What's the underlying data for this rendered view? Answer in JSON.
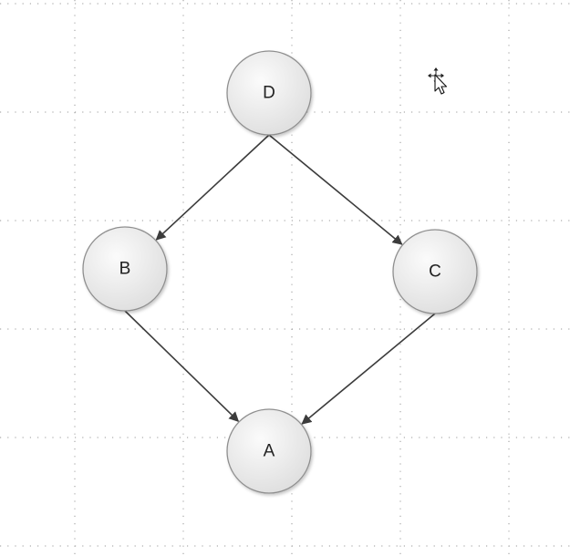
{
  "canvas": {
    "background": "#ffffff",
    "grid_color": "#9a9a9a",
    "grid": true
  },
  "nodes": [
    {
      "id": "D",
      "label": "D"
    },
    {
      "id": "B",
      "label": "B"
    },
    {
      "id": "C",
      "label": "C"
    },
    {
      "id": "A",
      "label": "A"
    }
  ],
  "edges": [
    {
      "from": "D",
      "to": "B"
    },
    {
      "from": "D",
      "to": "C"
    },
    {
      "from": "B",
      "to": "A"
    },
    {
      "from": "C",
      "to": "A"
    }
  ],
  "style": {
    "node_fill_light": "#fbfbfb",
    "node_fill_dark": "#dedede",
    "node_stroke": "#8f8f8f",
    "edge_color": "#3c3c3c"
  },
  "cursor": {
    "icon": "move-cursor-icon"
  }
}
